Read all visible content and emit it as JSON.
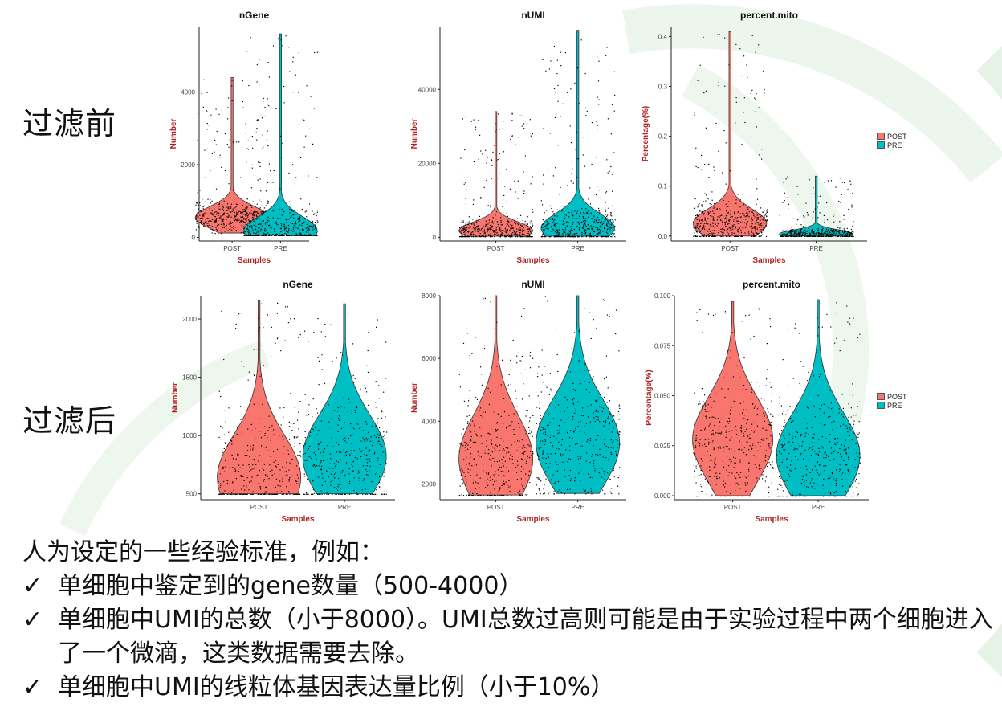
{
  "row_labels": {
    "before": "过滤前",
    "after": "过滤后"
  },
  "notes": {
    "intro": "人为设定的一些经验标准，例如：",
    "check_symbol": "✓",
    "bullets": [
      "单细胞中鉴定到的gene数量（500-4000）",
      "单细胞中UMI的总数（小于8000）。UMI总数过高则可能是由于实验过程中两个细胞进入了一个微滴，这类数据需要去除。",
      "单细胞中UMI的线粒体基因表达量比例（小于10%）"
    ]
  },
  "legend": {
    "items": [
      "POST",
      "PRE"
    ],
    "colors": [
      "#F8766D",
      "#00BFC4"
    ]
  },
  "chart_data": [
    {
      "type": "violin",
      "row": "before",
      "title": "nGene",
      "xlabel": "Samples",
      "ylabel": "Number",
      "categories": [
        "POST",
        "PRE"
      ],
      "ylim": [
        -100,
        5800
      ],
      "yticks": [
        0,
        2000,
        4000
      ],
      "yticklabels": [
        "0",
        "2000",
        "4000"
      ],
      "series": [
        {
          "name": "POST",
          "min": 120,
          "max": 4400,
          "peak": 550
        },
        {
          "name": "PRE",
          "min": 60,
          "max": 5600,
          "peak": 180
        }
      ]
    },
    {
      "type": "violin",
      "row": "before",
      "title": "nUMI",
      "xlabel": "Samples",
      "ylabel": "Number",
      "categories": [
        "POST",
        "PRE"
      ],
      "ylim": [
        -1000,
        57000
      ],
      "yticks": [
        0,
        20000,
        40000
      ],
      "yticklabels": [
        "0",
        "20000",
        "40000"
      ],
      "series": [
        {
          "name": "POST",
          "min": 300,
          "max": 34000,
          "peak": 1800
        },
        {
          "name": "PRE",
          "min": 300,
          "max": 56000,
          "peak": 2500
        }
      ]
    },
    {
      "type": "violin",
      "row": "before",
      "title": "percent.mito",
      "xlabel": "Samples",
      "ylabel": "Percentage(%)",
      "categories": [
        "POST",
        "PRE"
      ],
      "ylim": [
        -0.01,
        0.42
      ],
      "yticks": [
        0.0,
        0.1,
        0.2,
        0.3,
        0.4
      ],
      "yticklabels": [
        "0.0",
        "0.1",
        "0.2",
        "0.3",
        "0.4"
      ],
      "series": [
        {
          "name": "POST",
          "min": 0.0,
          "max": 0.41,
          "peak": 0.025
        },
        {
          "name": "PRE",
          "min": 0.0,
          "max": 0.12,
          "peak": 0.004
        }
      ]
    },
    {
      "type": "violin",
      "row": "after",
      "title": "nGene",
      "xlabel": "Samples",
      "ylabel": "Number",
      "categories": [
        "POST",
        "PRE"
      ],
      "ylim": [
        450,
        2200
      ],
      "yticks": [
        500,
        1000,
        1500,
        2000
      ],
      "yticklabels": [
        "500",
        "1000",
        "1500",
        "2000"
      ],
      "series": [
        {
          "name": "POST",
          "min": 500,
          "max": 2160,
          "peak": 640
        },
        {
          "name": "PRE",
          "min": 500,
          "max": 2130,
          "peak": 820
        }
      ]
    },
    {
      "type": "violin",
      "row": "after",
      "title": "nUMI",
      "xlabel": "Samples",
      "ylabel": "Number",
      "categories": [
        "POST",
        "PRE"
      ],
      "ylim": [
        1500,
        8000
      ],
      "yticks": [
        2000,
        4000,
        6000,
        8000
      ],
      "yticklabels": [
        "2000",
        "4000",
        "6000",
        "8000"
      ],
      "series": [
        {
          "name": "POST",
          "min": 1650,
          "max": 8000,
          "peak": 2800
        },
        {
          "name": "PRE",
          "min": 1700,
          "max": 8000,
          "peak": 3300
        }
      ]
    },
    {
      "type": "violin",
      "row": "after",
      "title": "percent.mito",
      "xlabel": "Samples",
      "ylabel": "Percentage(%)",
      "categories": [
        "POST",
        "PRE"
      ],
      "ylim": [
        -0.002,
        0.1
      ],
      "yticks": [
        0.0,
        0.025,
        0.05,
        0.075,
        0.1
      ],
      "yticklabels": [
        "0.000",
        "0.025",
        "0.050",
        "0.075",
        "0.100"
      ],
      "series": [
        {
          "name": "POST",
          "min": 0.0,
          "max": 0.097,
          "peak": 0.028
        },
        {
          "name": "PRE",
          "min": 0.0,
          "max": 0.098,
          "peak": 0.02
        }
      ]
    }
  ]
}
